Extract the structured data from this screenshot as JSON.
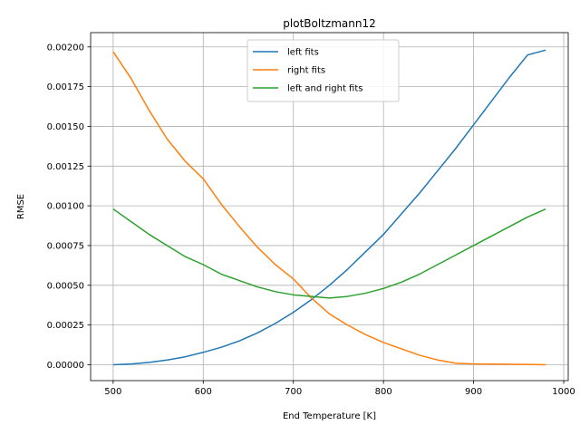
{
  "chart_data": {
    "type": "line",
    "title": "plotBoltzmann12",
    "xlabel": "End Temperature [K]",
    "ylabel": "RMSE",
    "xlim": [
      475,
      1005
    ],
    "ylim": [
      -0.0001,
      0.00209
    ],
    "xticks": [
      500,
      600,
      700,
      800,
      900,
      1000
    ],
    "xtick_labels": [
      "500",
      "600",
      "700",
      "800",
      "900",
      "1000"
    ],
    "yticks": [
      0,
      0.00025,
      0.0005,
      0.00075,
      0.001,
      0.00125,
      0.0015,
      0.00175,
      0.002
    ],
    "ytick_labels": [
      "0.00000",
      "0.00025",
      "0.00050",
      "0.00075",
      "0.00100",
      "0.00125",
      "0.00150",
      "0.00175",
      "0.00200"
    ],
    "grid": true,
    "legend_position": "top-center",
    "x": [
      500,
      520,
      540,
      560,
      580,
      600,
      620,
      640,
      660,
      680,
      700,
      720,
      740,
      760,
      780,
      800,
      820,
      840,
      860,
      880,
      900,
      920,
      940,
      960,
      980
    ],
    "series": [
      {
        "name": "left fits",
        "color": "#1f77b4",
        "values": [
          0.0,
          5e-06,
          1.5e-05,
          3e-05,
          5e-05,
          7.8e-05,
          0.00011,
          0.00015,
          0.0002,
          0.00026,
          0.00033,
          0.00041,
          0.0005,
          0.0006,
          0.00071,
          0.00082,
          0.00095,
          0.00108,
          0.00122,
          0.00136,
          0.00151,
          0.00166,
          0.00181,
          0.00195,
          0.00198
        ]
      },
      {
        "name": "right fits",
        "color": "#ff7f0e",
        "values": [
          0.00197,
          0.0018,
          0.0016,
          0.00142,
          0.00128,
          0.00117,
          0.00101,
          0.00087,
          0.00074,
          0.00063,
          0.00054,
          0.00042,
          0.00032,
          0.00025,
          0.00019,
          0.00014,
          0.0001,
          6e-05,
          3e-05,
          1e-05,
          5e-06,
          4e-06,
          3e-06,
          2e-06,
          0.0
        ]
      },
      {
        "name": "left and right fits",
        "color": "#2ca02c",
        "values": [
          0.00098,
          0.0009,
          0.00082,
          0.00075,
          0.00068,
          0.00063,
          0.00057,
          0.00053,
          0.00049,
          0.00046,
          0.00044,
          0.00043,
          0.00042,
          0.00043,
          0.00045,
          0.00048,
          0.00052,
          0.00057,
          0.00063,
          0.00069,
          0.00075,
          0.00081,
          0.00087,
          0.00093,
          0.00098
        ]
      }
    ]
  }
}
